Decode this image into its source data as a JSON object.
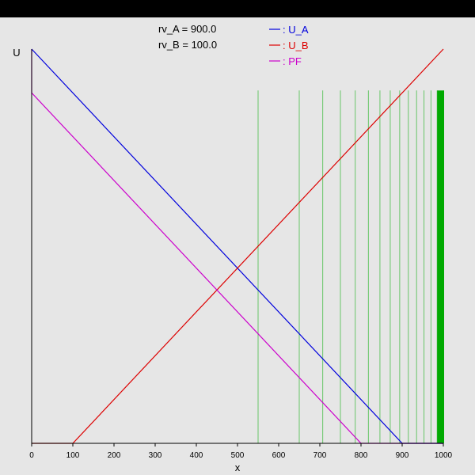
{
  "chart_data": {
    "type": "line",
    "title": "",
    "xlabel": "x",
    "ylabel": "U",
    "xlim": [
      0,
      1000
    ],
    "ylim": [
      0,
      1000
    ],
    "xticks": [
      0,
      100,
      200,
      300,
      400,
      500,
      600,
      700,
      800,
      900,
      1000
    ],
    "annotations": [
      {
        "label": "rv_A",
        "value": "900.0"
      },
      {
        "label": "rv_B",
        "value": "100.0"
      }
    ],
    "legend_placement": "top-center",
    "series": [
      {
        "name": ": U_A",
        "color": "#0000dd",
        "points": [
          [
            0,
            1000
          ],
          [
            900,
            0
          ],
          [
            1000,
            0
          ]
        ]
      },
      {
        "name": ": U_B",
        "color": "#dd0000",
        "points": [
          [
            0,
            0
          ],
          [
            100,
            0
          ],
          [
            1000,
            1000
          ]
        ]
      },
      {
        "name": ": PF",
        "color": "#cc00cc",
        "points": [
          [
            0,
            1000
          ],
          [
            0,
            889
          ],
          [
            800,
            0
          ],
          [
            1000,
            0
          ]
        ]
      }
    ],
    "vertical_lines": {
      "color": "#00aa00",
      "y_top": 895,
      "x": [
        550,
        650,
        707,
        750,
        786,
        818,
        846,
        871,
        894,
        915,
        935,
        953,
        970,
        985,
        1000
      ]
    }
  }
}
